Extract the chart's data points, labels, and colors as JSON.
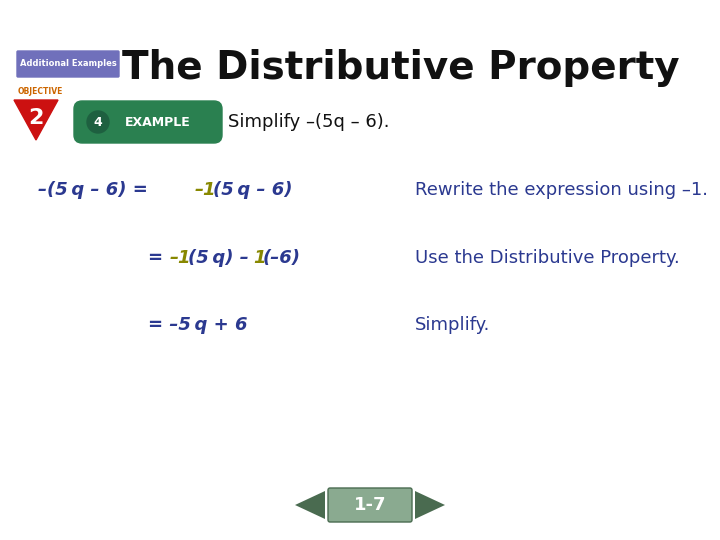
{
  "bg_color": "#ffffff",
  "title_text": "The Distributive Property",
  "title_fontsize": 28,
  "title_color": "#111111",
  "additional_examples_label": "Additional Examples",
  "ae_box_color": "#7070bb",
  "ae_text_color": "#ffffff",
  "objective_label": "OBJECTIVE",
  "objective_color": "#cc6600",
  "triangle_color": "#cc1111",
  "triangle_num": "2",
  "example_bubble_color": "#2a8050",
  "example_num": "4",
  "example_label": "EXAMPLE",
  "simplify_text": "–(5q – 6).",
  "simplify_prefix": "Simplify ",
  "simplify_fontsize": 13,
  "simplify_color": "#111111",
  "dark_blue": "#2b3990",
  "yellow_green": "#888800",
  "nav_color": "#4a6b50",
  "nav_arrow_color": "#3a5540",
  "nav_center_color": "#8aaa90"
}
